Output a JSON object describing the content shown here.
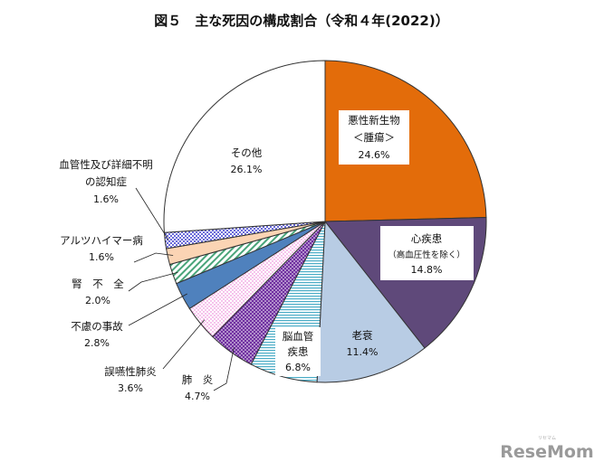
{
  "chart_data": {
    "type": "pie",
    "title": "図５　主な死因の構成割合（令和４年(2022)）",
    "slices": [
      {
        "name": "悪性新生物",
        "name2": "＜腫瘍＞",
        "value": 24.6,
        "label": "24.6%",
        "color": "#e36c0a",
        "pattern": "solid"
      },
      {
        "name": "心疾患",
        "name2": "（高血圧性を除く）",
        "value": 14.8,
        "label": "14.8%",
        "color": "#5f497a",
        "pattern": "solid"
      },
      {
        "name": "老衰",
        "value": 11.4,
        "label": "11.4%",
        "color": "#b8cce4",
        "pattern": "solid"
      },
      {
        "name": "脳血管",
        "name2": "疾患",
        "value": 6.8,
        "label": "6.8%",
        "color": "#4aacc6",
        "pattern": "hlines"
      },
      {
        "name": "肺　炎",
        "value": 4.7,
        "label": "4.7%",
        "color": "#7030a0",
        "pattern": "dots-dark"
      },
      {
        "name": "誤嚥性肺炎",
        "value": 3.6,
        "label": "3.6%",
        "color": "#e86ad0",
        "pattern": "dots-light"
      },
      {
        "name": "不慮の事故",
        "value": 2.8,
        "label": "2.8%",
        "color": "#4f81bd",
        "pattern": "solid"
      },
      {
        "name": "腎　不　全",
        "value": 2.0,
        "label": "2.0%",
        "color": "#4aa57a",
        "pattern": "diag"
      },
      {
        "name": "アルツハイマー病",
        "value": 1.6,
        "label": "1.6%",
        "color": "#fbd4b4",
        "pattern": "solid"
      },
      {
        "name": "血管性及び詳細不明",
        "name2": "の認知症",
        "value": 1.6,
        "label": "1.6%",
        "color": "#6a6ad8",
        "pattern": "checker"
      },
      {
        "name": "その他",
        "value": 26.1,
        "label": "26.1%",
        "color": "#ffffff",
        "pattern": "solid"
      }
    ]
  },
  "watermark": {
    "text": "ReseMom",
    "small": "リセマム"
  }
}
